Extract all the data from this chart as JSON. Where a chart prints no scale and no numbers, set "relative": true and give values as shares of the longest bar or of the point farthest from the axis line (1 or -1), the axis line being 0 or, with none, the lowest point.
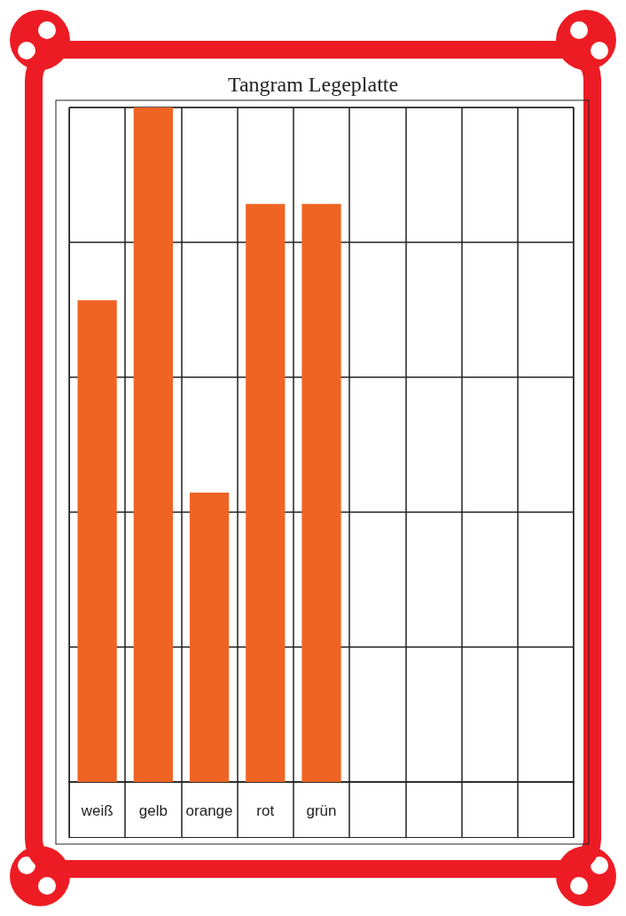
{
  "chart_data": {
    "type": "bar",
    "title": "Tangram Legeplatte",
    "categories": [
      "weiß",
      "gelb",
      "orange",
      "rot",
      "grün",
      null,
      null,
      null,
      null
    ],
    "values": [
      0.714,
      1,
      0.429,
      0.857,
      0.857,
      0,
      0,
      0,
      0
    ],
    "relative": true,
    "color": "#ef6423",
    "grid": true
  }
}
